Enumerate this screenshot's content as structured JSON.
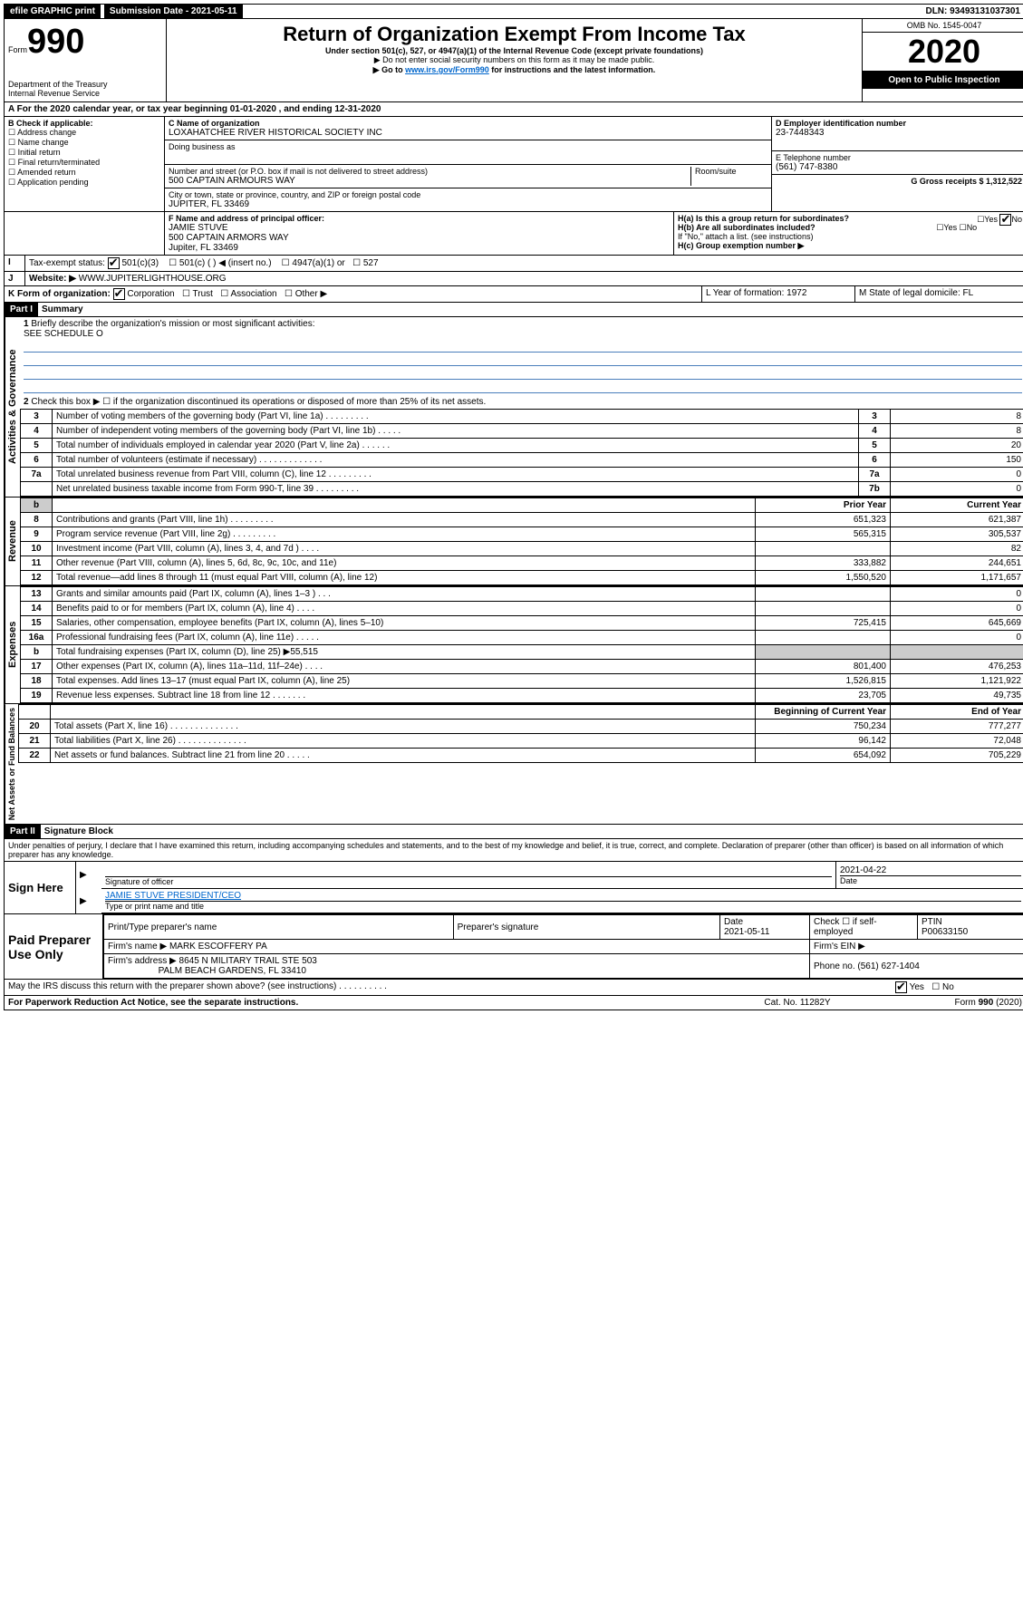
{
  "topbar": {
    "efile": "efile GRAPHIC print",
    "submission_label": "Submission Date - 2021-05-11",
    "dln_label": "DLN: 93493131037301"
  },
  "header": {
    "form_prefix": "Form",
    "form_number": "990",
    "dept": "Department of the Treasury",
    "irs": "Internal Revenue Service",
    "title": "Return of Organization Exempt From Income Tax",
    "subtitle": "Under section 501(c), 527, or 4947(a)(1) of the Internal Revenue Code (except private foundations)",
    "note1": "▶ Do not enter social security numbers on this form as it may be made public.",
    "note2_pre": "▶ Go to ",
    "note2_link": "www.irs.gov/Form990",
    "note2_post": " for instructions and the latest information.",
    "omb": "OMB No. 1545-0047",
    "year": "2020",
    "open": "Open to Public Inspection"
  },
  "periodA": "For the 2020 calendar year, or tax year beginning 01-01-2020   , and ending 12-31-2020",
  "sectionB": {
    "label": "B Check if applicable:",
    "opts": [
      "Address change",
      "Name change",
      "Initial return",
      "Final return/terminated",
      "Amended return",
      "Application pending"
    ]
  },
  "sectionC": {
    "label": "C Name of organization",
    "name": "LOXAHATCHEE RIVER HISTORICAL SOCIETY INC",
    "dba_label": "Doing business as",
    "addr_label": "Number and street (or P.O. box if mail is not delivered to street address)",
    "room_label": "Room/suite",
    "addr": "500 CAPTAIN ARMOURS WAY",
    "city_label": "City or town, state or province, country, and ZIP or foreign postal code",
    "city": "JUPITER, FL  33469"
  },
  "sectionD": {
    "label": "D Employer identification number",
    "value": "23-7448343"
  },
  "sectionE": {
    "label": "E Telephone number",
    "value": "(561) 747-8380"
  },
  "sectionG": {
    "label": "G Gross receipts $ 1,312,522"
  },
  "sectionF": {
    "label": "F  Name and address of principal officer:",
    "name": "JAMIE STUVE",
    "addr1": "500 CAPTAIN ARMORS WAY",
    "addr2": "Jupiter, FL  33469"
  },
  "sectionH": {
    "a": "H(a)  Is this a group return for subordinates?",
    "b": "H(b)  Are all subordinates included?",
    "b_note": "If \"No,\" attach a list. (see instructions)",
    "c": "H(c)  Group exemption number ▶",
    "yes": "Yes",
    "no": "No"
  },
  "sectionI": {
    "label": "Tax-exempt status:",
    "opt1": "501(c)(3)",
    "opt2": "501(c) (   ) ◀ (insert no.)",
    "opt3": "4947(a)(1) or",
    "opt4": "527"
  },
  "sectionJ": {
    "label": "Website: ▶",
    "value": "WWW.JUPITERLIGHTHOUSE.ORG"
  },
  "sectionK": {
    "label": "K Form of organization:",
    "corp": "Corporation",
    "trust": "Trust",
    "assoc": "Association",
    "other": "Other ▶"
  },
  "sectionL": {
    "label": "L Year of formation: 1972"
  },
  "sectionM": {
    "label": "M State of legal domicile: FL"
  },
  "part1": {
    "label": "Part I",
    "title": "Summary",
    "side_gov": "Activities & Governance",
    "side_rev": "Revenue",
    "side_exp": "Expenses",
    "side_net": "Net Assets or Fund Balances",
    "l1": "Briefly describe the organization's mission or most significant activities:",
    "l1v": "SEE SCHEDULE O",
    "l2": "Check this box ▶ ☐  if the organization discontinued its operations or disposed of more than 25% of its net assets.",
    "rows_gov": [
      {
        "n": "3",
        "t": "Number of voting members of the governing body (Part VI, line 1a)   .    .    .    .    .    .    .    .    .",
        "box": "3",
        "v": "8"
      },
      {
        "n": "4",
        "t": "Number of independent voting members of the governing body (Part VI, line 1b)   .    .    .    .    .",
        "box": "4",
        "v": "8"
      },
      {
        "n": "5",
        "t": "Total number of individuals employed in calendar year 2020 (Part V, line 2a)   .    .    .    .    .    .",
        "box": "5",
        "v": "20"
      },
      {
        "n": "6",
        "t": "Total number of volunteers (estimate if necessary)   .    .    .    .    .    .    .    .    .    .    .    .    .",
        "box": "6",
        "v": "150"
      },
      {
        "n": "7a",
        "t": "Total unrelated business revenue from Part VIII, column (C), line 12   .    .    .    .    .    .    .    .    .",
        "box": "7a",
        "v": "0"
      },
      {
        "n": "",
        "t": "Net unrelated business taxable income from Form 990-T, line 39   .    .    .    .    .    .    .    .    .",
        "box": "7b",
        "v": "0"
      }
    ],
    "header_prior": "Prior Year",
    "header_current": "Current Year",
    "rows_rev": [
      {
        "n": "8",
        "t": "Contributions and grants (Part VIII, line 1h)   .    .    .    .    .    .    .    .    .",
        "p": "651,323",
        "c": "621,387"
      },
      {
        "n": "9",
        "t": "Program service revenue (Part VIII, line 2g)   .    .    .    .    .    .    .    .    .",
        "p": "565,315",
        "c": "305,537"
      },
      {
        "n": "10",
        "t": "Investment income (Part VIII, column (A), lines 3, 4, and 7d )   .    .    .    .",
        "p": "",
        "c": "82"
      },
      {
        "n": "11",
        "t": "Other revenue (Part VIII, column (A), lines 5, 6d, 8c, 9c, 10c, and 11e)",
        "p": "333,882",
        "c": "244,651"
      },
      {
        "n": "12",
        "t": "Total revenue—add lines 8 through 11 (must equal Part VIII, column (A), line 12)",
        "p": "1,550,520",
        "c": "1,171,657"
      }
    ],
    "rows_exp": [
      {
        "n": "13",
        "t": "Grants and similar amounts paid (Part IX, column (A), lines 1–3 )   .    .    .",
        "p": "",
        "c": "0"
      },
      {
        "n": "14",
        "t": "Benefits paid to or for members (Part IX, column (A), line 4)   .    .    .    .",
        "p": "",
        "c": "0"
      },
      {
        "n": "15",
        "t": "Salaries, other compensation, employee benefits (Part IX, column (A), lines 5–10)",
        "p": "725,415",
        "c": "645,669"
      },
      {
        "n": "16a",
        "t": "Professional fundraising fees (Part IX, column (A), line 11e)   .    .    .    .    .",
        "p": "",
        "c": "0"
      },
      {
        "n": "b",
        "t": "Total fundraising expenses (Part IX, column (D), line 25) ▶55,515",
        "p": null,
        "c": null
      },
      {
        "n": "17",
        "t": "Other expenses (Part IX, column (A), lines 11a–11d, 11f–24e)   .    .    .    .",
        "p": "801,400",
        "c": "476,253"
      },
      {
        "n": "18",
        "t": "Total expenses. Add lines 13–17 (must equal Part IX, column (A), line 25)",
        "p": "1,526,815",
        "c": "1,121,922"
      },
      {
        "n": "19",
        "t": "Revenue less expenses. Subtract line 18 from line 12   .    .    .    .    .    .    .",
        "p": "23,705",
        "c": "49,735"
      }
    ],
    "header_begin": "Beginning of Current Year",
    "header_end": "End of Year",
    "rows_net": [
      {
        "n": "20",
        "t": "Total assets (Part X, line 16)   .    .    .    .    .    .    .    .    .    .    .    .    .    .",
        "p": "750,234",
        "c": "777,277"
      },
      {
        "n": "21",
        "t": "Total liabilities (Part X, line 26)   .    .    .    .    .    .    .    .    .    .    .    .    .    .",
        "p": "96,142",
        "c": "72,048"
      },
      {
        "n": "22",
        "t": "Net assets or fund balances. Subtract line 21 from line 20   .    .    .    .    .",
        "p": "654,092",
        "c": "705,229"
      }
    ]
  },
  "part2": {
    "label": "Part II",
    "title": "Signature Block",
    "declaration": "Under penalties of perjury, I declare that I have examined this return, including accompanying schedules and statements, and to the best of my knowledge and belief, it is true, correct, and complete. Declaration of preparer (other than officer) is based on all information of which preparer has any knowledge.",
    "sign_here": "Sign Here",
    "sig_officer": "Signature of officer",
    "sig_date": "2021-04-22",
    "date_label": "Date",
    "officer_name": "JAMIE STUVE  PRESIDENT/CEO",
    "type_name": "Type or print name and title",
    "paid": {
      "label": "Paid Preparer Use Only",
      "h1": "Print/Type preparer's name",
      "h2": "Preparer's signature",
      "h3": "Date",
      "date": "2021-05-11",
      "h4": "Check ☐ if self-employed",
      "h5": "PTIN",
      "ptin": "P00633150",
      "firm_label": "Firm's name     ▶",
      "firm": "MARK ESCOFFERY PA",
      "ein_label": "Firm's EIN ▶",
      "addr_label": "Firm's address ▶",
      "addr1": "8645 N MILITARY TRAIL STE 503",
      "addr2": "PALM BEACH GARDENS, FL  33410",
      "phone_label": "Phone no. (561) 627-1404"
    },
    "discuss": "May the IRS discuss this return with the preparer shown above? (see instructions)   .    .    .    .    .    .    .    .    .    .",
    "pra": "For Paperwork Reduction Act Notice, see the separate instructions.",
    "cat": "Cat. No. 11282Y",
    "formfoot": "Form 990 (2020)"
  }
}
